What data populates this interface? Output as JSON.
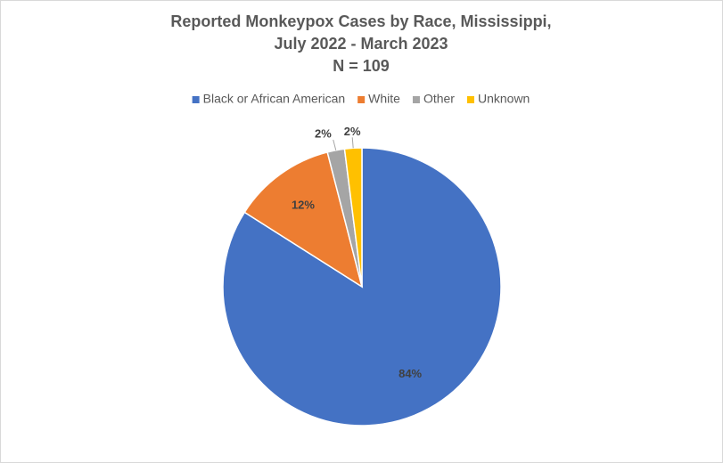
{
  "chart_data": {
    "type": "pie",
    "title": [
      "Reported Monkeypox Cases by Race, Mississippi,",
      "July 2022 - March 2023",
      "N = 109"
    ],
    "categories": [
      "Black or African American",
      "White",
      "Other",
      "Unknown"
    ],
    "values": [
      84,
      12,
      2,
      2
    ],
    "value_labels": [
      "84%",
      "12%",
      "2%",
      "2%"
    ],
    "colors": [
      "#4472c4",
      "#ed7d31",
      "#a5a5a5",
      "#ffc000"
    ],
    "legend": "top"
  }
}
